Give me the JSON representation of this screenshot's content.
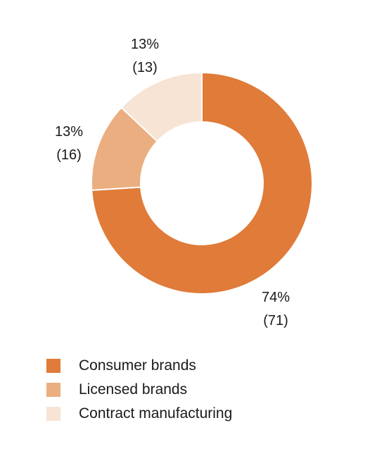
{
  "chart_data": {
    "type": "pie",
    "title": "",
    "categories": [
      "Consumer brands",
      "Licensed brands",
      "Contract manufacturing"
    ],
    "values": [
      74,
      13,
      13
    ],
    "value_labels": [
      "74%",
      "13%",
      "13%"
    ],
    "count_labels": [
      "(71)",
      "(16)",
      "(13)"
    ],
    "colors": [
      "#E07B39",
      "#EBAE80",
      "#F7E4D5"
    ],
    "donut": true,
    "legend_position": "bottom-left"
  }
}
